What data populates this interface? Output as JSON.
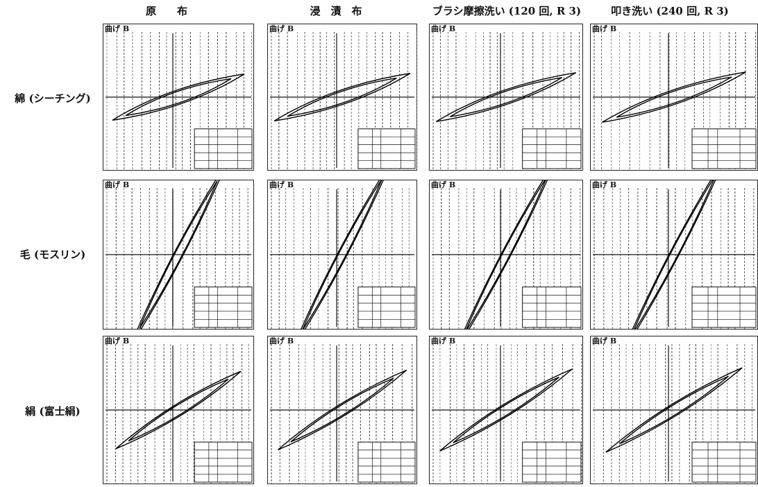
{
  "columns": [
    "原　　布",
    "浸　漬　布",
    "ブラシ摩擦洗い (120 回, R 3)",
    "叩き洗い (240 回, R 3)"
  ],
  "rows": [
    "綿 (シーチング)",
    "毛 (モスリン)",
    "絹 (富士絹)"
  ],
  "panel_label": "曲げ B"
}
